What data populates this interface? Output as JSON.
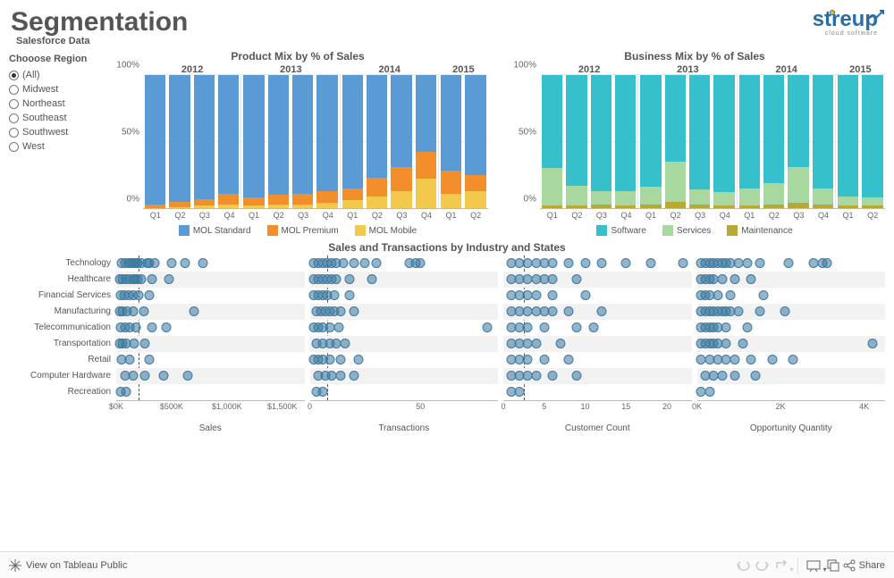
{
  "header": {
    "title": "Segmentation",
    "subtitle": "Salesforce Data",
    "logo_text_1": "st",
    "logo_text_2": "reup",
    "logo_sub": "cloud software",
    "logo_color": "#2e6da4",
    "logo_accent": "#f2b21b"
  },
  "region_filter": {
    "title": "Chooose Region",
    "options": [
      "(All)",
      "Midwest",
      "Northeast",
      "Southeast",
      "Southwest",
      "West"
    ],
    "selected": 0
  },
  "palette": {
    "mol_standard": "#5b9bd5",
    "mol_premium": "#f28e2b",
    "mol_mobile": "#f2c94c",
    "software": "#35c0cb",
    "services": "#a8d8a0",
    "maintenance": "#b8a836"
  },
  "product_mix": {
    "title": "Product Mix by % of Sales",
    "type": "stacked-bar-100",
    "background": "#ffffff",
    "grid_color": "#e8e8e8",
    "ylim": [
      0,
      100
    ],
    "yticks": [
      0,
      50,
      100
    ],
    "ytick_labels": [
      "0%",
      "50%",
      "100%"
    ],
    "years": [
      "2012",
      "2013",
      "2014",
      "2015"
    ],
    "quarters": [
      [
        "Q1",
        "Q2",
        "Q3",
        "Q4"
      ],
      [
        "Q1",
        "Q2",
        "Q3",
        "Q4"
      ],
      [
        "Q1",
        "Q2",
        "Q3",
        "Q4"
      ],
      [
        "Q1",
        "Q2"
      ]
    ],
    "series": [
      {
        "name": "MOL Mobile",
        "color": "#f2c94c"
      },
      {
        "name": "MOL Premium",
        "color": "#f28e2b"
      },
      {
        "name": "MOL Standard",
        "color": "#5b9bd5"
      }
    ],
    "data": [
      {
        "mobile": 0,
        "premium": 3,
        "standard": 97
      },
      {
        "mobile": 1,
        "premium": 4,
        "standard": 95
      },
      {
        "mobile": 2,
        "premium": 5,
        "standard": 93
      },
      {
        "mobile": 3,
        "premium": 8,
        "standard": 89
      },
      {
        "mobile": 2,
        "premium": 6,
        "standard": 92
      },
      {
        "mobile": 3,
        "premium": 7,
        "standard": 90
      },
      {
        "mobile": 3,
        "premium": 8,
        "standard": 89
      },
      {
        "mobile": 4,
        "premium": 9,
        "standard": 87
      },
      {
        "mobile": 6,
        "premium": 9,
        "standard": 85
      },
      {
        "mobile": 9,
        "premium": 14,
        "standard": 77
      },
      {
        "mobile": 13,
        "premium": 18,
        "standard": 69
      },
      {
        "mobile": 22,
        "premium": 20,
        "standard": 58
      },
      {
        "mobile": 11,
        "premium": 17,
        "standard": 72
      },
      {
        "mobile": 13,
        "premium": 12,
        "standard": 75
      }
    ],
    "legend": [
      "MOL Standard",
      "MOL Premium",
      "MOL Mobile"
    ],
    "legend_colors": [
      "#5b9bd5",
      "#f28e2b",
      "#f2c94c"
    ]
  },
  "business_mix": {
    "title": "Business Mix by % of Sales",
    "type": "stacked-bar-100",
    "background": "#ffffff",
    "grid_color": "#e8e8e8",
    "ylim": [
      0,
      100
    ],
    "yticks": [
      0,
      50,
      100
    ],
    "ytick_labels": [
      "0%",
      "50%",
      "100%"
    ],
    "years": [
      "2012",
      "2013",
      "2014",
      "2015"
    ],
    "quarters": [
      [
        "Q1",
        "Q2",
        "Q3",
        "Q4"
      ],
      [
        "Q1",
        "Q2",
        "Q3",
        "Q4"
      ],
      [
        "Q1",
        "Q2",
        "Q3",
        "Q4"
      ],
      [
        "Q1",
        "Q2"
      ]
    ],
    "series": [
      {
        "name": "Maintenance",
        "color": "#b8a836"
      },
      {
        "name": "Services",
        "color": "#a8d8a0"
      },
      {
        "name": "Software",
        "color": "#35c0cb"
      }
    ],
    "data": [
      {
        "maint": 2,
        "serv": 28,
        "soft": 70
      },
      {
        "maint": 2,
        "serv": 15,
        "soft": 83
      },
      {
        "maint": 3,
        "serv": 10,
        "soft": 87
      },
      {
        "maint": 2,
        "serv": 11,
        "soft": 87
      },
      {
        "maint": 3,
        "serv": 13,
        "soft": 84
      },
      {
        "maint": 5,
        "serv": 30,
        "soft": 65
      },
      {
        "maint": 3,
        "serv": 11,
        "soft": 86
      },
      {
        "maint": 2,
        "serv": 10,
        "soft": 88
      },
      {
        "maint": 2,
        "serv": 13,
        "soft": 85
      },
      {
        "maint": 3,
        "serv": 16,
        "soft": 81
      },
      {
        "maint": 4,
        "serv": 27,
        "soft": 69
      },
      {
        "maint": 3,
        "serv": 12,
        "soft": 85
      },
      {
        "maint": 2,
        "serv": 7,
        "soft": 91
      },
      {
        "maint": 2,
        "serv": 6,
        "soft": 92
      }
    ],
    "legend": [
      "Software",
      "Services",
      "Maintenance"
    ],
    "legend_colors": [
      "#35c0cb",
      "#a8d8a0",
      "#b8a836"
    ]
  },
  "industry_dots": {
    "title": "Sales and Transactions by Industry and States",
    "dot_color": "#3a79a1",
    "dot_fill_opacity": 0.55,
    "row_alt_bg": "#f2f2f2",
    "industries": [
      "Technology",
      "Healthcare",
      "Financial Services",
      "Manufacturing",
      "Telecommunication",
      "Transportation",
      "Retail",
      "Computer Hardware",
      "Recreation"
    ],
    "panels": [
      {
        "label": "Sales",
        "xlim": [
          0,
          1700
        ],
        "ticks": [
          0,
          500,
          1000,
          1500
        ],
        "tick_labels": [
          "$0K",
          "$500K",
          "$1,000K",
          "$1,500K"
        ],
        "ref": 200,
        "rows": [
          [
            50,
            80,
            110,
            140,
            160,
            180,
            190,
            230,
            280,
            300,
            350,
            500,
            620,
            780
          ],
          [
            30,
            60,
            90,
            120,
            150,
            170,
            190,
            230,
            320,
            480
          ],
          [
            40,
            70,
            110,
            150,
            200,
            300
          ],
          [
            30,
            60,
            100,
            150,
            250,
            700
          ],
          [
            40,
            80,
            120,
            180,
            320,
            450
          ],
          [
            30,
            60,
            90,
            160,
            260
          ],
          [
            50,
            120,
            300
          ],
          [
            80,
            150,
            260,
            430,
            650
          ],
          [
            40,
            90
          ]
        ]
      },
      {
        "label": "Transactions",
        "xlim": [
          0,
          85
        ],
        "ticks": [
          0,
          50
        ],
        "tick_labels": [
          "0",
          "50"
        ],
        "ref": 8,
        "rows": [
          [
            2,
            4,
            6,
            8,
            10,
            12,
            15,
            20,
            25,
            30,
            45,
            48,
            50
          ],
          [
            2,
            4,
            6,
            8,
            10,
            12,
            18,
            28
          ],
          [
            2,
            4,
            6,
            8,
            11,
            18
          ],
          [
            3,
            5,
            7,
            9,
            11,
            14,
            20
          ],
          [
            2,
            4,
            6,
            9,
            13,
            80
          ],
          [
            3,
            6,
            9,
            12,
            16
          ],
          [
            2,
            4,
            6,
            9,
            14,
            22
          ],
          [
            4,
            7,
            10,
            14,
            20
          ],
          [
            3,
            6
          ]
        ]
      },
      {
        "label": "Customer Count",
        "xlim": [
          0,
          23
        ],
        "ticks": [
          0,
          5,
          10,
          15,
          20
        ],
        "tick_labels": [
          "0",
          "5",
          "10",
          "15",
          "20"
        ],
        "ref": 2.5,
        "rows": [
          [
            1,
            2,
            3,
            4,
            5,
            6,
            8,
            10,
            12,
            15,
            18,
            22
          ],
          [
            1,
            2,
            3,
            4,
            5,
            6,
            9
          ],
          [
            1,
            2,
            3,
            4,
            6,
            10
          ],
          [
            1,
            2,
            3,
            4,
            5,
            6,
            8,
            12
          ],
          [
            1,
            2,
            3,
            5,
            9,
            11
          ],
          [
            1,
            2,
            3,
            4,
            7
          ],
          [
            1,
            2,
            3,
            5,
            8
          ],
          [
            1,
            2,
            3,
            4,
            6,
            9
          ],
          [
            1,
            2
          ]
        ]
      },
      {
        "label": "Opportunity Quantity",
        "xlim": [
          0,
          4500
        ],
        "ticks": [
          0,
          2000,
          4000
        ],
        "tick_labels": [
          "0K",
          "2K",
          "4K"
        ],
        "ref": null,
        "rows": [
          [
            100,
            200,
            300,
            400,
            500,
            600,
            700,
            800,
            1000,
            1200,
            1500,
            2200,
            2800,
            3000,
            3100
          ],
          [
            100,
            200,
            300,
            400,
            600,
            900,
            1300
          ],
          [
            100,
            200,
            300,
            500,
            800,
            1600
          ],
          [
            100,
            200,
            300,
            400,
            500,
            600,
            700,
            800,
            1000,
            1500,
            2100
          ],
          [
            100,
            200,
            300,
            400,
            500,
            700,
            1200
          ],
          [
            100,
            200,
            300,
            400,
            500,
            700,
            1100,
            4200
          ],
          [
            100,
            300,
            500,
            700,
            900,
            1300,
            1800,
            2300
          ],
          [
            200,
            400,
            600,
            900,
            1400
          ],
          [
            100,
            300
          ]
        ]
      }
    ]
  },
  "footer": {
    "view_on": "View on Tableau Public",
    "share": "Share"
  }
}
